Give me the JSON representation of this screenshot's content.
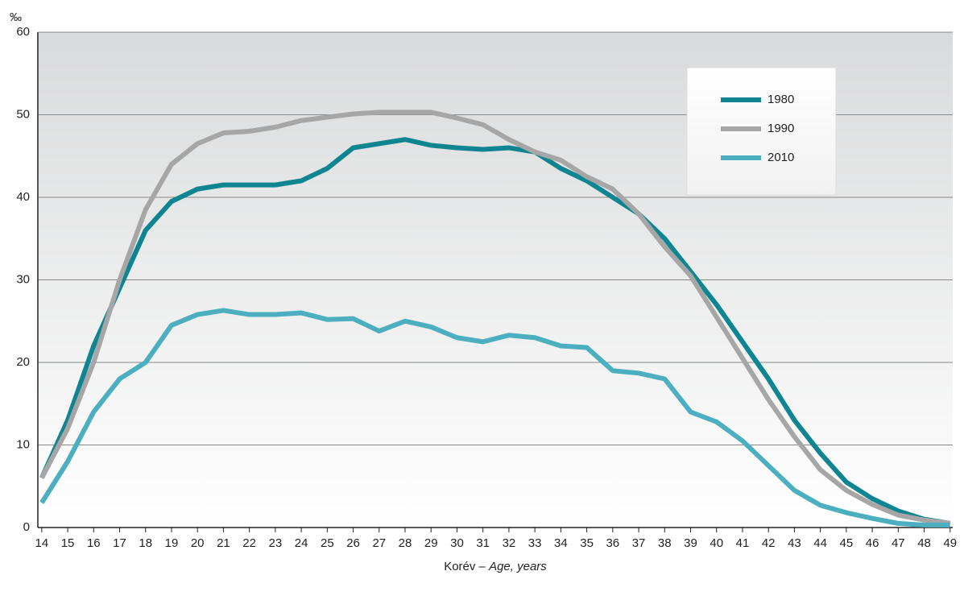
{
  "chart_data": {
    "type": "line",
    "y_unit": "‰",
    "x_label": "Korév –",
    "x_label_italic": "Age, years",
    "x": [
      14,
      15,
      16,
      17,
      18,
      19,
      20,
      21,
      22,
      23,
      24,
      25,
      26,
      27,
      28,
      29,
      30,
      31,
      32,
      33,
      34,
      35,
      36,
      37,
      38,
      39,
      40,
      41,
      42,
      43,
      44,
      45,
      46,
      47,
      48,
      49
    ],
    "series": [
      {
        "name": "1980",
        "color": "#0e8590",
        "values": [
          6,
          13,
          22,
          29,
          36,
          39.5,
          41,
          41.5,
          41.5,
          41.5,
          42,
          43.5,
          46,
          46.5,
          47,
          46.3,
          46,
          45.8,
          46,
          45.5,
          43.5,
          42,
          40,
          38,
          35,
          31,
          27,
          22.5,
          18,
          13,
          9,
          5.5,
          3.5,
          2,
          1,
          0.5
        ]
      },
      {
        "name": "1990",
        "color": "#a6a6a6",
        "values": [
          6,
          12,
          20,
          30,
          38.5,
          44,
          46.5,
          47.8,
          48,
          48.5,
          49.3,
          49.7,
          50.1,
          50.3,
          50.3,
          50.3,
          49.6,
          48.8,
          47,
          45.5,
          44.5,
          42.5,
          41,
          38,
          34,
          30.5,
          25.5,
          20.5,
          15.5,
          11,
          7,
          4.5,
          2.8,
          1.5,
          0.9,
          0.5
        ]
      },
      {
        "name": "2010",
        "color": "#4bafbf",
        "values": [
          3,
          8,
          14,
          18,
          20,
          24.5,
          25.8,
          26.3,
          25.8,
          25.8,
          26,
          25.2,
          25.3,
          23.8,
          25,
          24.3,
          23,
          22.5,
          23.3,
          23,
          22,
          21.8,
          19,
          18.7,
          18,
          14,
          12.8,
          10.5,
          7.5,
          4.5,
          2.7,
          1.8,
          1.1,
          0.5,
          0.3,
          0.3
        ]
      }
    ],
    "xlim": [
      13.85,
      49.1
    ],
    "xticks": [
      14,
      15,
      16,
      17,
      18,
      19,
      20,
      21,
      22,
      23,
      24,
      25,
      26,
      27,
      28,
      29,
      30,
      31,
      32,
      33,
      34,
      35,
      36,
      37,
      38,
      39,
      40,
      41,
      42,
      43,
      44,
      45,
      46,
      47,
      48,
      49
    ],
    "ylim": [
      0,
      60
    ],
    "yticks": [
      0,
      10,
      20,
      30,
      40,
      50,
      60
    ],
    "grid": true,
    "legend": "upper right"
  }
}
